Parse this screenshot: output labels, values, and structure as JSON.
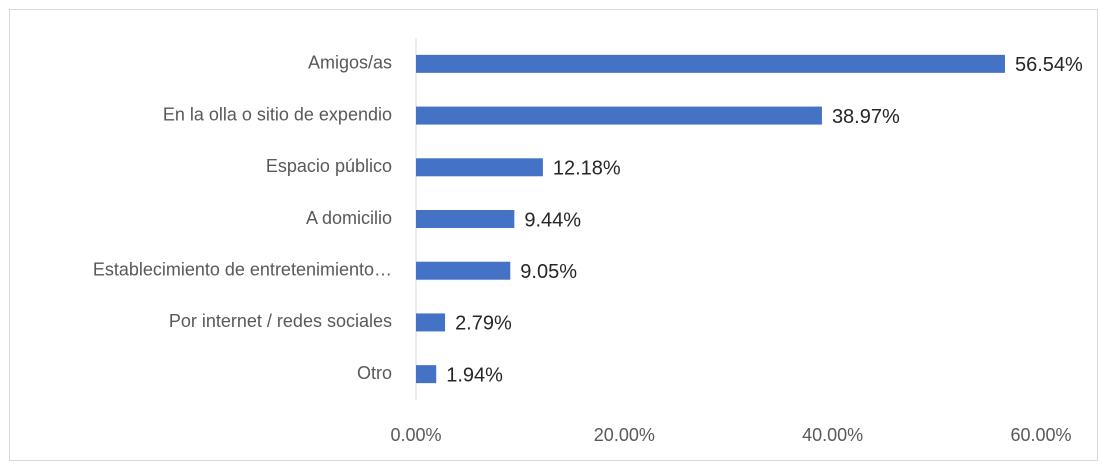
{
  "chart_data": {
    "type": "bar",
    "orientation": "horizontal",
    "categories": [
      "Amigos/as",
      "En la olla o sitio de expendio",
      "Espacio público",
      "A domicilio",
      "Establecimiento de entretenimiento…",
      "Por internet / redes sociales",
      "Otro"
    ],
    "values": [
      56.54,
      38.97,
      12.18,
      9.44,
      9.05,
      2.79,
      1.94
    ],
    "value_labels": [
      "56.54%",
      "38.97%",
      "12.18%",
      "9.44%",
      "9.05%",
      "2.79%",
      "1.94%"
    ],
    "color": "#4472c4",
    "xlim": [
      0,
      60
    ],
    "xticks": [
      {
        "value": 0,
        "label": "0.00%"
      },
      {
        "value": 20,
        "label": "20.00%"
      },
      {
        "value": 40,
        "label": "40.00%"
      },
      {
        "value": 60,
        "label": "60.00%"
      }
    ],
    "grid": false
  }
}
